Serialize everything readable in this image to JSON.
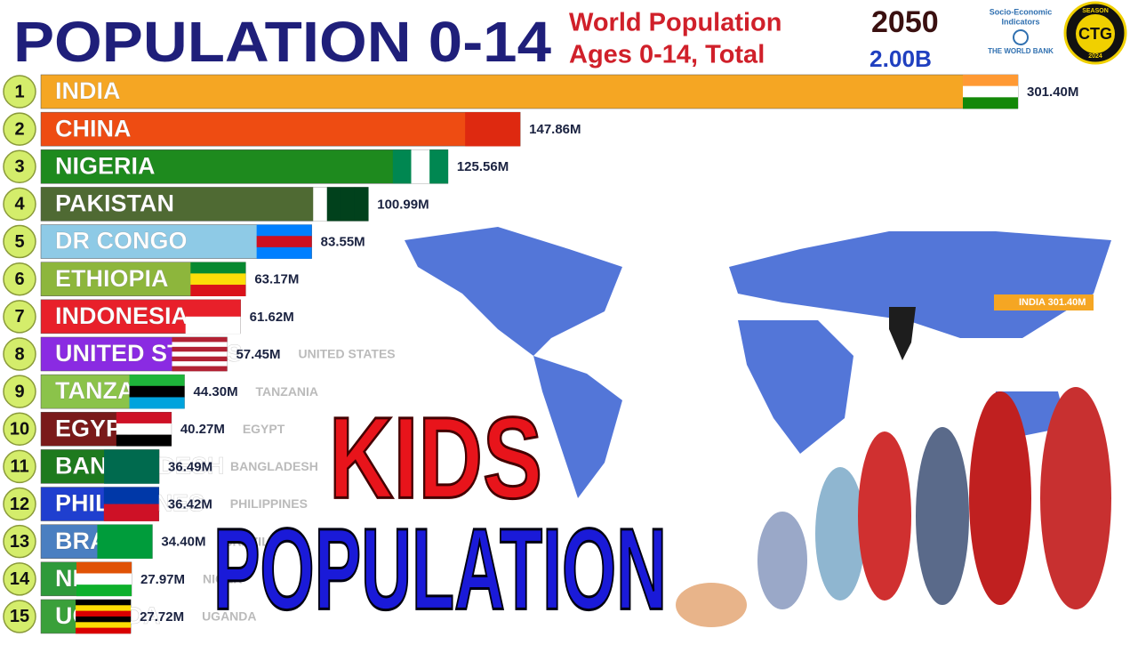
{
  "header": {
    "title": "POPULATION 0-14",
    "subtitle_line1": "World Population",
    "subtitle_line2": "Ages 0-14, Total",
    "year": "2050",
    "total": "2.00B",
    "logo_text1": "Socio-Economic",
    "logo_text2": "Indicators",
    "logo_text3": "THE WORLD BANK",
    "badge_top": "SEASON",
    "badge_main": "CTG",
    "badge_year": "2024"
  },
  "chart_data": {
    "type": "bar",
    "orientation": "horizontal",
    "ranks": [
      "1",
      "2",
      "3",
      "4",
      "5",
      "6",
      "7",
      "8",
      "9",
      "10",
      "11",
      "12",
      "13",
      "14",
      "15"
    ],
    "categories": [
      "INDIA",
      "CHINA",
      "NIGERIA",
      "PAKISTAN",
      "DR CONGO",
      "ETHIOPIA",
      "INDONESIA",
      "UNITED STATES",
      "TANZANIA",
      "EGYPT",
      "BANGLADESH",
      "PHILIPPINES",
      "BRAZIL",
      "NIGER",
      "UGANDA"
    ],
    "values": [
      301.4,
      147.86,
      125.56,
      100.99,
      83.55,
      63.17,
      61.62,
      57.45,
      44.3,
      40.27,
      36.49,
      36.42,
      34.4,
      27.97,
      27.72
    ],
    "value_labels": [
      "301.40M",
      "147.86M",
      "125.56M",
      "100.99M",
      "83.55M",
      "63.17M",
      "61.62M",
      "57.45M",
      "44.30M",
      "40.27M",
      "36.49M",
      "36.42M",
      "34.40M",
      "27.97M",
      "27.72M"
    ],
    "colors": [
      "#f5a623",
      "#ee4c12",
      "#1e8a1e",
      "#4f6a33",
      "#8ecae6",
      "#8db63c",
      "#e8202a",
      "#8a2be2",
      "#8bc34a",
      "#7a1a1a",
      "#1e7a1e",
      "#1f3fcf",
      "#4a7fc1",
      "#2e9a3a",
      "#3aa03a"
    ],
    "map_label": "INDIA 301.40M"
  },
  "overlay": {
    "line1": "KIDS",
    "line2": "POPULATION"
  }
}
